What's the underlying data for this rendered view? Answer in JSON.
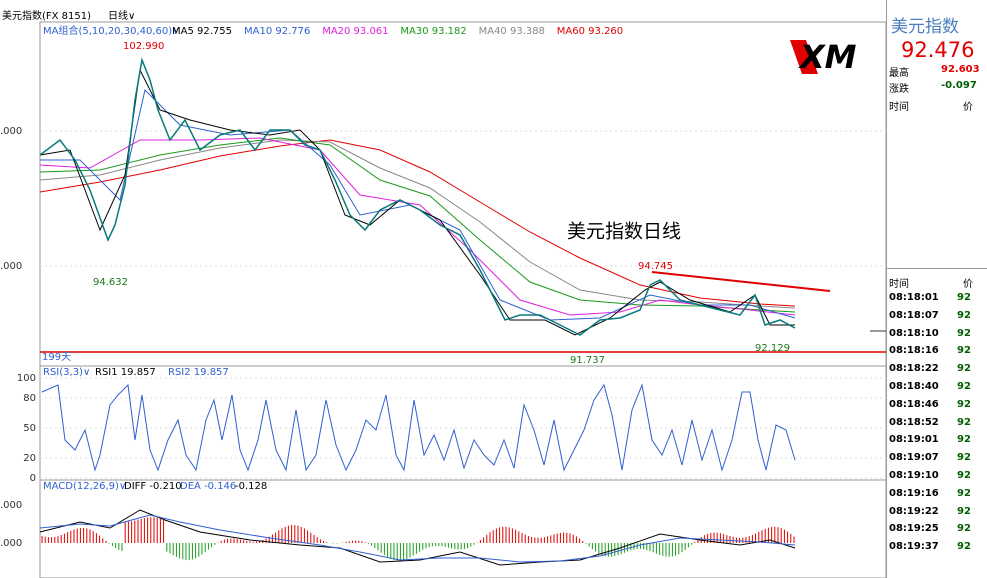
{
  "header": {
    "instrument": "美元指数(FX 8151)",
    "period": "日线∨"
  },
  "ma_legend": {
    "label": "MA组合(5,10,20,30,40,60)∨",
    "items": [
      "MA5 92.755",
      "MA10 92.776",
      "MA20 93.061",
      "MA30 93.182",
      "MA40 93.388",
      "MA60 93.260"
    ]
  },
  "annotations": {
    "high": "102.990",
    "low_left": "94.632",
    "peak_right": "94.745",
    "low_mid": "91.737",
    "low_right": "92.129"
  },
  "chart_title": "美元指数日线",
  "period_label": "199天",
  "logo": "XM",
  "price_axis": [
    ".000",
    ".000"
  ],
  "rsi": {
    "label": "RSI(3,3)∨",
    "items": [
      "RSI1 19.857",
      "RSI2 19.857"
    ],
    "ticks": [
      "100",
      "80",
      "50",
      "20",
      "0"
    ]
  },
  "macd": {
    "label": "MACD(12,26,9)∨",
    "items": [
      "DIFF -0.210",
      "DEA -0.146",
      "-0.128"
    ],
    "ticks": [
      ".000",
      ".000"
    ]
  },
  "quote": {
    "name": "美元指数",
    "price": "92.476",
    "high_label": "最高",
    "high": "92.603",
    "change_label": "涨跌",
    "change": "-0.097",
    "time_header": "时间",
    "value_header": "价"
  },
  "trades": {
    "time_header": "时间",
    "value_header": "价",
    "rows": [
      [
        "08:18:01",
        "92"
      ],
      [
        "08:18:07",
        "92"
      ],
      [
        "08:18:10",
        "92"
      ],
      [
        "08:18:16",
        "92"
      ],
      [
        "08:18:22",
        "92"
      ],
      [
        "08:18:40",
        "92"
      ],
      [
        "08:18:46",
        "92"
      ],
      [
        "08:18:52",
        "92"
      ],
      [
        "08:19:01",
        "92"
      ],
      [
        "08:19:07",
        "92"
      ],
      [
        "08:19:10",
        "92"
      ],
      [
        "08:19:16",
        "92"
      ],
      [
        "08:19:22",
        "92"
      ],
      [
        "08:19:25",
        "92"
      ],
      [
        "08:19:37",
        "92"
      ]
    ]
  }
}
